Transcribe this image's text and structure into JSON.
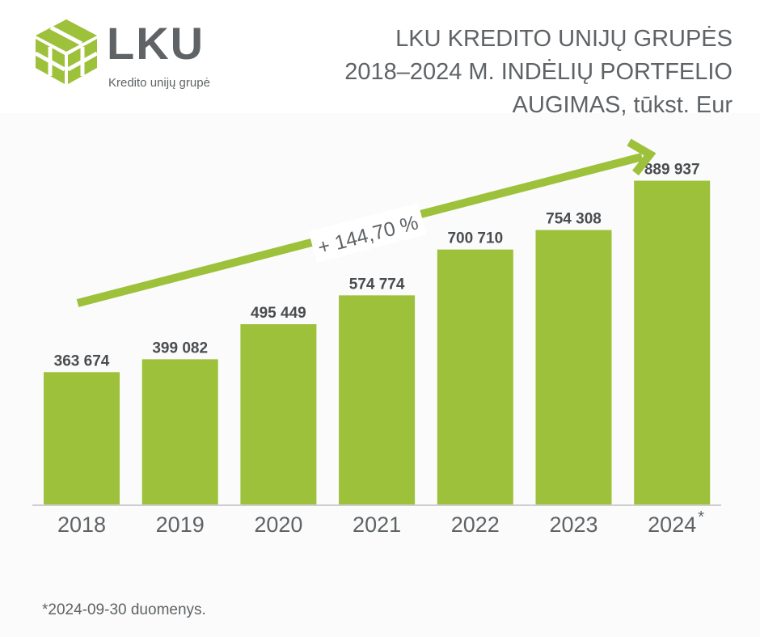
{
  "brand": {
    "logo_word": "LKU",
    "logo_subtitle": "Kredito unijų grupė",
    "accent_color": "#9dc13a",
    "text_color": "#5f6366"
  },
  "title_lines": [
    "LKU KREDITO UNIJŲ GRUPĖS",
    "2018–2024 M. INDĖLIŲ PORTFELIO",
    "AUGIMAS, tūkst. Eur"
  ],
  "chart_data": {
    "type": "bar",
    "title": "LKU KREDITO UNIJŲ GRUPĖS 2018–2024 M. INDĖLIŲ PORTFELIO AUGIMAS, tūkst. Eur",
    "categories": [
      "2018",
      "2019",
      "2020",
      "2021",
      "2022",
      "2023",
      "2024"
    ],
    "values": [
      363674,
      399082,
      495449,
      574774,
      700710,
      754308,
      889937
    ],
    "value_labels": [
      "363 674",
      "399 082",
      "495 449",
      "574 774",
      "700 710",
      "754 308",
      "889 937"
    ],
    "category_marks": [
      "",
      "",
      "",
      "",
      "",
      "",
      "*"
    ],
    "ylim": [
      0,
      1000000
    ],
    "grid": false,
    "legend": "none",
    "bar_color": "#9dc13a",
    "annotation": {
      "text": "+ 144,70 %",
      "type": "arrow",
      "direction": "up-right"
    }
  },
  "footnote": "*2024-09-30 duomenys."
}
